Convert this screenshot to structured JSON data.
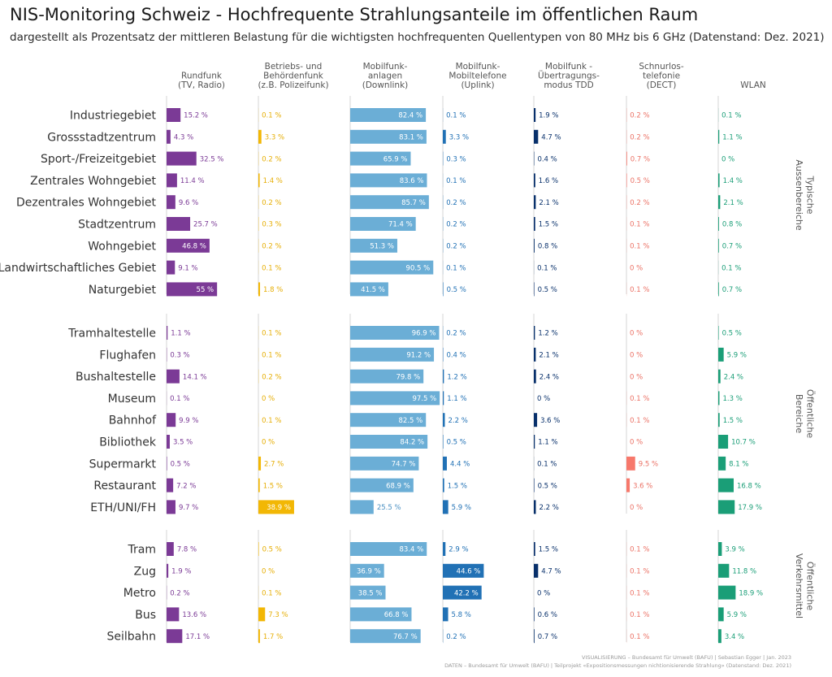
{
  "title": "NIS-Monitoring Schweiz - Hochfrequente Strahlungsanteile im öffentlichen Raum",
  "subtitle": "dargestellt als Prozentsatz der mittleren Belastung für die wichtigsten hochfrequenten Quellentypen von 80 MHz bis 6 GHz (Datenstand: Dez. 2021)",
  "footer": {
    "line1": "VISUALISIERUNG – Bundesamt für Umwelt (BAFU) | Sebastian Egger | Jan. 2023",
    "line2": "DATEN – Bundesamt für Umwelt (BAFU) | Teilprojekt «Expositionsmessungen nichtionisierende Strahlung» (Datenstand: Dez. 2021)"
  },
  "chart_data": {
    "type": "bar",
    "unit": "%",
    "columns": [
      {
        "lines": [
          "Rundfunk",
          "(TV, Radio)"
        ],
        "color": "#7b3a96"
      },
      {
        "lines": [
          "Betriebs- und",
          "Behördenfunk",
          "(z.B. Polizeifunk)"
        ],
        "color": "#f2b705"
      },
      {
        "lines": [
          "Mobilfunk-",
          "anlagen",
          "(Downlink)"
        ],
        "color": "#6baed6"
      },
      {
        "lines": [
          "Mobilfunk-",
          "Mobiltelefone",
          "(Uplink)"
        ],
        "color": "#2171b5"
      },
      {
        "lines": [
          "Mobilfunk -",
          "Übertragungs-",
          "modus TDD"
        ],
        "color": "#08306b"
      },
      {
        "lines": [
          "Schnurlos-",
          "telefonie",
          "(DECT)"
        ],
        "color": "#f7786b"
      },
      {
        "lines": [
          "WLAN"
        ],
        "color": "#1a9e77"
      }
    ],
    "groups": [
      {
        "lines": [
          "Typische",
          "Aussenbereiche"
        ],
        "rows": [
          {
            "label": "Industriegebiet",
            "values": [
              15.2,
              0.1,
              82.4,
              0.1,
              1.9,
              0.2,
              0.1
            ],
            "texts": [
              "15.2 %",
              "0.1 %",
              "82.4 %",
              "0.1 %",
              "1.9 %",
              "0.2 %",
              "0.1 %"
            ]
          },
          {
            "label": "Grossstadtzentrum",
            "values": [
              4.3,
              3.3,
              83.1,
              3.3,
              4.7,
              0.2,
              1.1
            ],
            "texts": [
              "4.3 %",
              "3.3 %",
              "83.1 %",
              "3.3 %",
              "4.7 %",
              "0.2 %",
              "1.1 %"
            ]
          },
          {
            "label": "Sport-/Freizeitgebiet",
            "values": [
              32.5,
              0.2,
              65.9,
              0.3,
              0.4,
              0.7,
              0
            ],
            "texts": [
              "32.5 %",
              "0.2 %",
              "65.9 %",
              "0.3 %",
              "0.4 %",
              "0.7 %",
              "0 %"
            ]
          },
          {
            "label": "Zentrales Wohngebiet",
            "values": [
              11.4,
              1.4,
              83.6,
              0.1,
              1.6,
              0.5,
              1.4
            ],
            "texts": [
              "11.4 %",
              "1.4 %",
              "83.6 %",
              "0.1 %",
              "1.6 %",
              "0.5 %",
              "1.4 %"
            ]
          },
          {
            "label": "Dezentrales Wohngebiet",
            "values": [
              9.6,
              0.2,
              85.7,
              0.2,
              2.1,
              0.2,
              2.1
            ],
            "texts": [
              "9.6 %",
              "0.2 %",
              "85.7 %",
              "0.2 %",
              "2.1 %",
              "0.2 %",
              "2.1 %"
            ]
          },
          {
            "label": "Stadtzentrum",
            "values": [
              25.7,
              0.3,
              71.4,
              0.2,
              1.5,
              0.1,
              0.8
            ],
            "texts": [
              "25.7 %",
              "0.3 %",
              "71.4 %",
              "0.2 %",
              "1.5 %",
              "0.1 %",
              "0.8 %"
            ]
          },
          {
            "label": "Wohngebiet",
            "values": [
              46.8,
              0.2,
              51.3,
              0.2,
              0.8,
              0.1,
              0.7
            ],
            "texts": [
              "46.8 %",
              "0.2 %",
              "51.3 %",
              "0.2 %",
              "0.8 %",
              "0.1 %",
              "0.7 %"
            ]
          },
          {
            "label": "Landwirtschaftliches Gebiet",
            "values": [
              9.1,
              0.1,
              90.5,
              0.1,
              0.1,
              0,
              0.1
            ],
            "texts": [
              "9.1 %",
              "0.1 %",
              "90.5 %",
              "0.1 %",
              "0.1 %",
              "0 %",
              "0.1 %"
            ]
          },
          {
            "label": "Naturgebiet",
            "values": [
              55,
              1.8,
              41.5,
              0.5,
              0.5,
              0.1,
              0.7
            ],
            "texts": [
              "55 %",
              "1.8 %",
              "41.5 %",
              "0.5 %",
              "0.5 %",
              "0.1 %",
              "0.7 %"
            ]
          }
        ]
      },
      {
        "lines": [
          "Öffentliche",
          "Bereiche"
        ],
        "rows": [
          {
            "label": "Tramhaltestelle",
            "values": [
              1.1,
              0.1,
              96.9,
              0.2,
              1.2,
              0,
              0.5
            ],
            "texts": [
              "1.1 %",
              "0.1 %",
              "96.9 %",
              "0.2 %",
              "1.2 %",
              "0 %",
              "0.5 %"
            ]
          },
          {
            "label": "Flughafen",
            "values": [
              0.3,
              0.1,
              91.2,
              0.4,
              2.1,
              0,
              5.9
            ],
            "texts": [
              "0.3 %",
              "0.1 %",
              "91.2 %",
              "0.4 %",
              "2.1 %",
              "0 %",
              "5.9 %"
            ]
          },
          {
            "label": "Bushaltestelle",
            "values": [
              14.1,
              0.2,
              79.8,
              1.2,
              2.4,
              0,
              2.4
            ],
            "texts": [
              "14.1 %",
              "0.2 %",
              "79.8 %",
              "1.2 %",
              "2.4 %",
              "0 %",
              "2.4 %"
            ]
          },
          {
            "label": "Museum",
            "values": [
              0.1,
              0,
              97.5,
              1.1,
              0,
              0.1,
              1.3
            ],
            "texts": [
              "0.1 %",
              "0 %",
              "97.5 %",
              "1.1 %",
              "0 %",
              "0.1 %",
              "1.3 %"
            ]
          },
          {
            "label": "Bahnhof",
            "values": [
              9.9,
              0.1,
              82.5,
              2.2,
              3.6,
              0.1,
              1.5
            ],
            "texts": [
              "9.9 %",
              "0.1 %",
              "82.5 %",
              "2.2 %",
              "3.6 %",
              "0.1 %",
              "1.5 %"
            ]
          },
          {
            "label": "Bibliothek",
            "values": [
              3.5,
              0,
              84.2,
              0.5,
              1.1,
              0,
              10.7
            ],
            "texts": [
              "3.5 %",
              "0 %",
              "84.2 %",
              "0.5 %",
              "1.1 %",
              "0 %",
              "10.7 %"
            ]
          },
          {
            "label": "Supermarkt",
            "values": [
              0.5,
              2.7,
              74.7,
              4.4,
              0.1,
              9.5,
              8.1
            ],
            "texts": [
              "0.5 %",
              "2.7 %",
              "74.7 %",
              "4.4 %",
              "0.1 %",
              "9.5 %",
              "8.1 %"
            ]
          },
          {
            "label": "Restaurant",
            "values": [
              7.2,
              1.5,
              68.9,
              1.5,
              0.5,
              3.6,
              16.8
            ],
            "texts": [
              "7.2 %",
              "1.5 %",
              "68.9 %",
              "1.5 %",
              "0.5 %",
              "3.6 %",
              "16.8 %"
            ]
          },
          {
            "label": "ETH/UNI/FH",
            "values": [
              9.7,
              38.9,
              25.5,
              5.9,
              2.2,
              0,
              17.9
            ],
            "texts": [
              "9.7 %",
              "38.9 %",
              "25.5 %",
              "5.9 %",
              "2.2 %",
              "0 %",
              "17.9 %"
            ]
          }
        ]
      },
      {
        "lines": [
          "Öffentliche",
          "Verkehrsmittel"
        ],
        "rows": [
          {
            "label": "Tram",
            "values": [
              7.8,
              0.5,
              83.4,
              2.9,
              1.5,
              0.1,
              3.9
            ],
            "texts": [
              "7.8 %",
              "0.5 %",
              "83.4 %",
              "2.9 %",
              "1.5 %",
              "0.1 %",
              "3.9 %"
            ]
          },
          {
            "label": "Zug",
            "values": [
              1.9,
              0,
              36.9,
              44.6,
              4.7,
              0.1,
              11.8
            ],
            "texts": [
              "1.9 %",
              "0 %",
              "36.9 %",
              "44.6 %",
              "4.7 %",
              "0.1 %",
              "11.8 %"
            ]
          },
          {
            "label": "Metro",
            "values": [
              0.2,
              0.1,
              38.5,
              42.2,
              0,
              0.1,
              18.9
            ],
            "texts": [
              "0.2 %",
              "0.1 %",
              "38.5 %",
              "42.2 %",
              "0 %",
              "0.1 %",
              "18.9 %"
            ]
          },
          {
            "label": "Bus",
            "values": [
              13.6,
              7.3,
              66.8,
              5.8,
              0.6,
              0.1,
              5.9
            ],
            "texts": [
              "13.6 %",
              "7.3 %",
              "66.8 %",
              "5.8 %",
              "0.6 %",
              "0.1 %",
              "5.9 %"
            ]
          },
          {
            "label": "Seilbahn",
            "values": [
              17.1,
              1.7,
              76.7,
              0.2,
              0.7,
              0.1,
              3.4
            ],
            "texts": [
              "17.1 %",
              "1.7 %",
              "76.7 %",
              "0.2 %",
              "0.7 %",
              "0.1 %",
              "3.4 %"
            ]
          }
        ]
      }
    ]
  }
}
